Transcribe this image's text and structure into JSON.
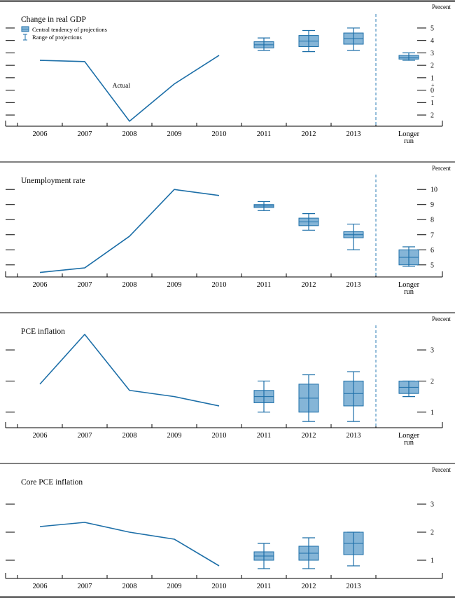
{
  "figure": {
    "x_years": [
      "2006",
      "2007",
      "2008",
      "2009",
      "2010",
      "2011",
      "2012",
      "2013"
    ],
    "longer_run_label": [
      "Longer",
      "run"
    ],
    "legend": [
      {
        "icon": "central-tendency-box-icon",
        "label": "Central tendency of projections"
      },
      {
        "icon": "range-ibeam-icon",
        "label": "Range of projections"
      }
    ],
    "colors": {
      "line": "#1d6fa8",
      "box_fill": "#85b5d7",
      "box_stroke": "#1d6fa8",
      "divider": "#2e7cb5",
      "axis": "#000000",
      "text": "#000000"
    }
  },
  "chart_data": [
    {
      "type": "line+box",
      "title": "Change in real GDP",
      "unit_label": "Percent",
      "ylim": [
        -2.9,
        5.9
      ],
      "yticks": [
        {
          "v": 5,
          "label": "5"
        },
        {
          "v": 4,
          "label": "4"
        },
        {
          "v": 3,
          "label": "3"
        },
        {
          "v": 2,
          "label": "2"
        },
        {
          "v": 1,
          "label": "1"
        },
        {
          "v": 0,
          "label": "0",
          "plus": "+",
          "minus": "−"
        },
        {
          "v": -1,
          "label": "1"
        },
        {
          "v": -2,
          "label": "2"
        }
      ],
      "actual": {
        "years": [
          2006,
          2007,
          2008,
          2009,
          2010
        ],
        "values": [
          2.4,
          2.3,
          -2.5,
          0.5,
          2.8
        ]
      },
      "annotation": {
        "text": "Actual",
        "year": 2007.62,
        "value": 0.2
      },
      "projections": [
        {
          "label": "2011",
          "central_tendency": [
            3.4,
            3.9
          ],
          "range": [
            3.2,
            4.2
          ]
        },
        {
          "label": "2012",
          "central_tendency": [
            3.5,
            4.4
          ],
          "range": [
            3.1,
            4.8
          ]
        },
        {
          "label": "2013",
          "central_tendency": [
            3.7,
            4.6
          ],
          "range": [
            3.2,
            5.0
          ]
        },
        {
          "label": "Longer run",
          "central_tendency": [
            2.5,
            2.8
          ],
          "range": [
            2.4,
            3.0
          ]
        }
      ],
      "has_longer_run": true,
      "show_legend": true
    },
    {
      "type": "line+box",
      "title": "Unemployment rate",
      "unit_label": "Percent",
      "ylim": [
        4.2,
        10.8
      ],
      "yticks": [
        {
          "v": 10,
          "label": "10"
        },
        {
          "v": 9,
          "label": "9"
        },
        {
          "v": 8,
          "label": "8"
        },
        {
          "v": 7,
          "label": "7"
        },
        {
          "v": 6,
          "label": "6"
        },
        {
          "v": 5,
          "label": "5"
        }
      ],
      "actual": {
        "years": [
          2006,
          2007,
          2008,
          2009,
          2010
        ],
        "values": [
          4.5,
          4.8,
          6.9,
          10.0,
          9.6
        ]
      },
      "projections": [
        {
          "label": "2011",
          "central_tendency": [
            8.8,
            9.0
          ],
          "range": [
            8.6,
            9.2
          ]
        },
        {
          "label": "2012",
          "central_tendency": [
            7.6,
            8.1
          ],
          "range": [
            7.3,
            8.4
          ]
        },
        {
          "label": "2013",
          "central_tendency": [
            6.8,
            7.2
          ],
          "range": [
            6.0,
            7.7
          ]
        },
        {
          "label": "Longer run",
          "central_tendency": [
            5.0,
            6.0
          ],
          "range": [
            4.9,
            6.2
          ]
        }
      ],
      "has_longer_run": true,
      "show_legend": false
    },
    {
      "type": "line+box",
      "title": "PCE inflation",
      "unit_label": "Percent",
      "ylim": [
        0.5,
        3.7
      ],
      "yticks": [
        {
          "v": 3,
          "label": "3"
        },
        {
          "v": 2,
          "label": "2"
        },
        {
          "v": 1,
          "label": "1"
        }
      ],
      "actual": {
        "years": [
          2006,
          2007,
          2008,
          2009,
          2010
        ],
        "values": [
          1.9,
          3.5,
          1.7,
          1.5,
          1.2
        ]
      },
      "projections": [
        {
          "label": "2011",
          "central_tendency": [
            1.3,
            1.7
          ],
          "range": [
            1.0,
            2.0
          ]
        },
        {
          "label": "2012",
          "central_tendency": [
            1.0,
            1.9
          ],
          "range": [
            0.7,
            2.2
          ]
        },
        {
          "label": "2013",
          "central_tendency": [
            1.2,
            2.0
          ],
          "range": [
            0.7,
            2.3
          ]
        },
        {
          "label": "Longer run",
          "central_tendency": [
            1.6,
            2.0
          ],
          "range": [
            1.5,
            2.0
          ]
        }
      ],
      "has_longer_run": true,
      "show_legend": false
    },
    {
      "type": "line+box",
      "title": "Core PCE inflation",
      "unit_label": "Percent",
      "ylim": [
        0.35,
        3.9
      ],
      "yticks": [
        {
          "v": 3,
          "label": "3"
        },
        {
          "v": 2,
          "label": "2"
        },
        {
          "v": 1,
          "label": "1"
        }
      ],
      "actual": {
        "years": [
          2006,
          2007,
          2008,
          2009,
          2010
        ],
        "values": [
          2.2,
          2.35,
          2.0,
          1.75,
          0.8
        ]
      },
      "projections": [
        {
          "label": "2011",
          "central_tendency": [
            1.0,
            1.3
          ],
          "range": [
            0.7,
            1.6
          ]
        },
        {
          "label": "2012",
          "central_tendency": [
            1.0,
            1.5
          ],
          "range": [
            0.7,
            1.8
          ]
        },
        {
          "label": "2013",
          "central_tendency": [
            1.2,
            2.0
          ],
          "range": [
            0.8,
            2.0
          ]
        }
      ],
      "has_longer_run": false,
      "show_legend": false
    }
  ]
}
